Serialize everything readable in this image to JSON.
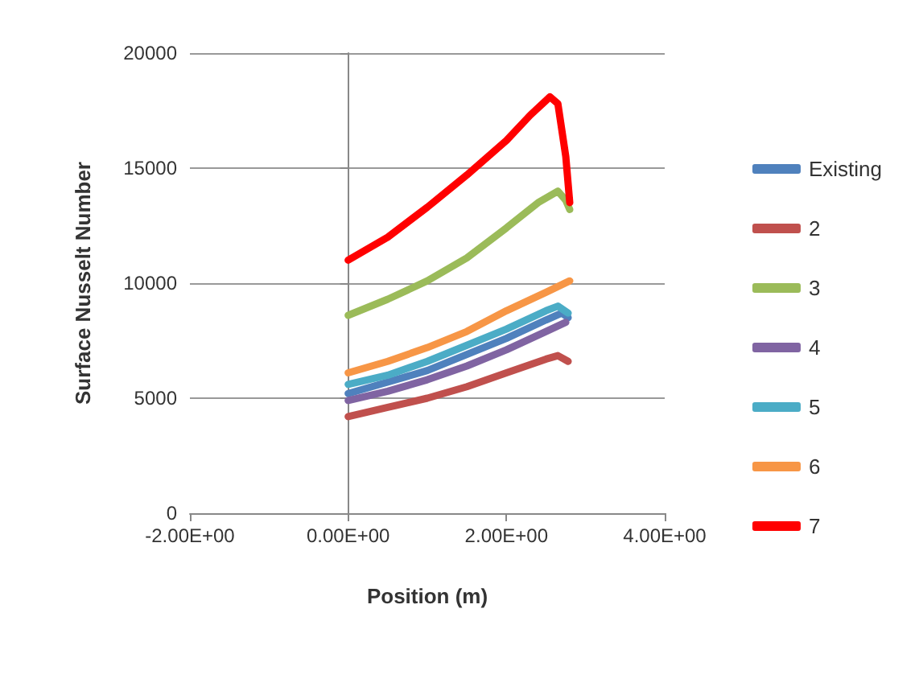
{
  "chart_data": {
    "type": "line",
    "xlabel": "Position (m)",
    "ylabel": "Surface Nusselt Number",
    "xlim": [
      -2,
      4
    ],
    "xticks": [
      {
        "value": -2,
        "label": "-2.00E+00"
      },
      {
        "value": 0,
        "label": "0.00E+00"
      },
      {
        "value": 2,
        "label": "2.00E+00"
      },
      {
        "value": 4,
        "label": "4.00E+00"
      }
    ],
    "ylim": [
      0,
      20000
    ],
    "yticks": [
      0,
      5000,
      10000,
      15000,
      20000
    ],
    "grid": "y",
    "legend": "right",
    "marker": "none",
    "line_style": "solid",
    "series": [
      {
        "name": "Existing",
        "color": "#4f81bd",
        "x": [
          0,
          0.5,
          1,
          1.5,
          2,
          2.5,
          2.7,
          2.78
        ],
        "values": [
          5200,
          5700,
          6200,
          6900,
          7600,
          8400,
          8700,
          8500
        ]
      },
      {
        "name": "2",
        "color": "#c0504d",
        "x": [
          0,
          0.5,
          1,
          1.5,
          2,
          2.5,
          2.65,
          2.78
        ],
        "values": [
          4200,
          4600,
          5000,
          5500,
          6100,
          6700,
          6850,
          6600
        ]
      },
      {
        "name": "3",
        "color": "#9bbb59",
        "x": [
          0,
          0.5,
          1,
          1.5,
          2,
          2.4,
          2.65,
          2.75,
          2.8
        ],
        "values": [
          8600,
          9300,
          10100,
          11100,
          12400,
          13500,
          14000,
          13600,
          13200
        ]
      },
      {
        "name": "4",
        "color": "#8064a2",
        "x": [
          0,
          0.5,
          1,
          1.5,
          2,
          2.5,
          2.75
        ],
        "values": [
          4900,
          5300,
          5800,
          6400,
          7100,
          7900,
          8300
        ]
      },
      {
        "name": "5",
        "color": "#4bacc6",
        "x": [
          0,
          0.5,
          1,
          1.5,
          2,
          2.5,
          2.65,
          2.78
        ],
        "values": [
          5600,
          6000,
          6600,
          7300,
          8000,
          8800,
          9000,
          8700
        ]
      },
      {
        "name": "6",
        "color": "#f79646",
        "x": [
          0,
          0.5,
          1,
          1.5,
          2,
          2.5,
          2.8
        ],
        "values": [
          6100,
          6600,
          7200,
          7900,
          8800,
          9600,
          10100
        ]
      },
      {
        "name": "7",
        "color": "#ff0000",
        "x": [
          0,
          0.5,
          1,
          1.5,
          2,
          2.3,
          2.55,
          2.65,
          2.75,
          2.8
        ],
        "values": [
          11000,
          12000,
          13300,
          14700,
          16200,
          17300,
          18100,
          17800,
          15500,
          13500
        ]
      }
    ]
  }
}
